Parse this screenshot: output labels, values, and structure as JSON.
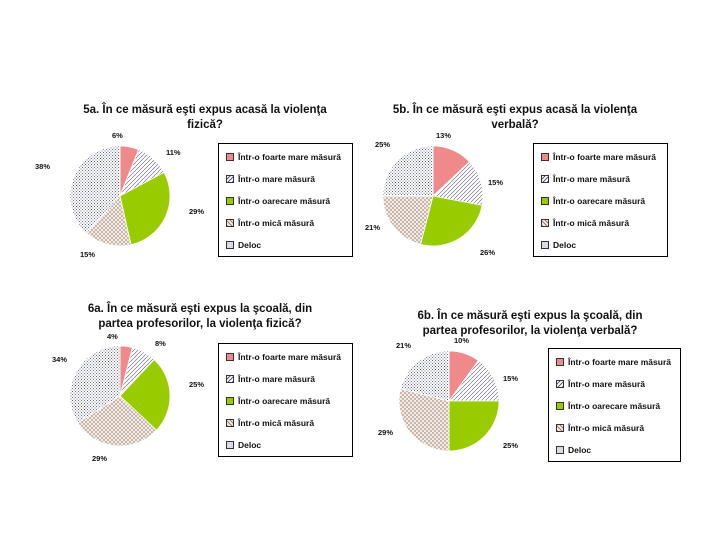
{
  "legend_labels": [
    "Într-o foarte mare măsură",
    "Într-o mare măsură",
    "Într-o oarecare măsură",
    "Într-o mică măsură",
    "Deloc"
  ],
  "colors": [
    "#f08a8a",
    "#e8e8f5",
    "#99cc00",
    "#ece3dc",
    "#f0f0f8"
  ],
  "chart_data": [
    {
      "type": "pie",
      "title_line1": "5a. În ce măsură eşti expus acasă la violenţa",
      "title_line2": "fizică?",
      "categories": [
        "Într-o foarte mare măsură",
        "Într-o mare măsură",
        "Într-o oarecare măsură",
        "Într-o mică măsură",
        "Deloc"
      ],
      "values": [
        6,
        11,
        29,
        15,
        38
      ],
      "labels": [
        "6%",
        "11%",
        "29%",
        "15%",
        "38%"
      ]
    },
    {
      "type": "pie",
      "title_line1": "5b. În ce măsură eşti expus acasă la violenţa",
      "title_line2": "verbală?",
      "categories": [
        "Într-o foarte mare măsură",
        "Într-o mare măsură",
        "Într-o oarecare măsură",
        "Într-o mică măsură",
        "Deloc"
      ],
      "values": [
        13,
        15,
        26,
        21,
        25
      ],
      "labels": [
        "13%",
        "15%",
        "26%",
        "21%",
        "25%"
      ]
    },
    {
      "type": "pie",
      "title_line1": "6a. În ce măsură eşti expus la şcoală, din",
      "title_line2": "partea profesorilor, la violenţa fizică?",
      "categories": [
        "Într-o foarte mare măsură",
        "Într-o mare măsură",
        "Într-o oarecare măsură",
        "Într-o mică măsură",
        "Deloc"
      ],
      "values": [
        4,
        8,
        25,
        29,
        34
      ],
      "labels": [
        "4%",
        "8%",
        "25%",
        "29%",
        "34%"
      ]
    },
    {
      "type": "pie",
      "title_line1": "6b. În ce măsură eşti expus la şcoală, din",
      "title_line2": "partea profesorilor, la violenţa verbală?",
      "categories": [
        "Într-o foarte mare măsură",
        "Într-o mare măsură",
        "Într-o oarecare măsură",
        "Într-o mică măsură",
        "Deloc"
      ],
      "values": [
        10,
        15,
        25,
        29,
        21
      ],
      "labels": [
        "10%",
        "15%",
        "25%",
        "29%",
        "21%"
      ]
    }
  ]
}
